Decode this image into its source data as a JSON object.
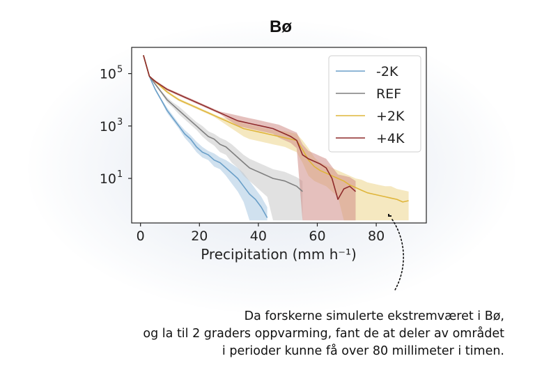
{
  "chart_data": {
    "type": "line",
    "title": "Bø",
    "xlabel": "Precipitation (mm h⁻¹)",
    "ylabel": "",
    "xlim": [
      -3,
      97
    ],
    "ylim_log10": [
      -0.7,
      6.0
    ],
    "y_scale": "log",
    "x_ticks": [
      0,
      20,
      40,
      60,
      80
    ],
    "y_ticks": [
      {
        "exp": 5,
        "label": "10",
        "sup": "5"
      },
      {
        "exp": 3,
        "label": "10",
        "sup": "3"
      },
      {
        "exp": 1,
        "label": "10",
        "sup": "1"
      }
    ],
    "legend_position": "top-right",
    "series": [
      {
        "name": "-2K",
        "color": "#6a9fc8",
        "fill": "#a9c9e1",
        "x": [
          1,
          3,
          5,
          7,
          9,
          11,
          13,
          15,
          17,
          19,
          21,
          23,
          25,
          27,
          29,
          31,
          33,
          35,
          37,
          39,
          41,
          43
        ],
        "log10y": [
          5.7,
          4.9,
          4.4,
          4.0,
          3.6,
          3.3,
          3.0,
          2.7,
          2.5,
          2.2,
          2.0,
          1.9,
          1.7,
          1.6,
          1.4,
          1.2,
          1.0,
          0.7,
          0.4,
          0.2,
          -0.1,
          -0.5
        ],
        "band_hi": [
          5.7,
          4.9,
          4.45,
          4.05,
          3.7,
          3.4,
          3.1,
          2.85,
          2.65,
          2.4,
          2.2,
          2.05,
          1.95,
          1.8,
          1.7,
          1.55,
          1.4,
          1.2,
          0.9,
          0.6,
          0.3,
          -0.1
        ],
        "band_lo": [
          5.7,
          4.9,
          4.35,
          3.95,
          3.5,
          3.2,
          2.9,
          2.55,
          2.3,
          2.0,
          1.8,
          1.7,
          1.45,
          1.35,
          1.1,
          0.8,
          0.5,
          0.1,
          -0.6,
          -0.6,
          -0.6,
          -0.6
        ]
      },
      {
        "name": "REF",
        "color": "#7f7f7f",
        "fill": "#c8c8c8",
        "x": [
          1,
          3,
          5,
          7,
          9,
          11,
          13,
          15,
          17,
          19,
          21,
          23,
          25,
          27,
          29,
          31,
          33,
          35,
          37,
          39,
          41,
          43,
          45,
          47,
          49,
          51,
          53,
          55
        ],
        "log10y": [
          5.7,
          4.9,
          4.6,
          4.3,
          4.0,
          3.8,
          3.6,
          3.4,
          3.2,
          3.0,
          2.8,
          2.6,
          2.5,
          2.3,
          2.2,
          2.0,
          1.8,
          1.6,
          1.4,
          1.3,
          1.2,
          1.1,
          1.0,
          0.95,
          0.9,
          0.8,
          0.7,
          0.5
        ],
        "band_hi": [
          5.7,
          4.9,
          4.65,
          4.35,
          4.1,
          3.9,
          3.75,
          3.55,
          3.35,
          3.15,
          3.0,
          2.8,
          2.7,
          2.55,
          2.45,
          2.3,
          2.1,
          1.9,
          1.75,
          1.65,
          1.55,
          1.45,
          1.35,
          1.3,
          1.25,
          1.15,
          1.05,
          0.9
        ],
        "band_lo": [
          5.7,
          4.9,
          4.55,
          4.25,
          3.9,
          3.7,
          3.45,
          3.25,
          3.05,
          2.85,
          2.6,
          2.4,
          2.25,
          2.0,
          1.9,
          1.6,
          1.4,
          1.1,
          0.9,
          0.7,
          0.5,
          0.3,
          -0.6,
          -0.6,
          -0.6,
          -0.6,
          -0.6,
          -0.6
        ]
      },
      {
        "name": "+2K",
        "color": "#dfb53a",
        "fill": "#ecd68c",
        "x": [
          1,
          3,
          5,
          7,
          9,
          11,
          13,
          15,
          17,
          19,
          21,
          23,
          25,
          27,
          29,
          31,
          33,
          35,
          37,
          39,
          41,
          43,
          45,
          47,
          49,
          51,
          53,
          55,
          57,
          59,
          61,
          63,
          65,
          67,
          69,
          71,
          73,
          75,
          77,
          79,
          81,
          83,
          85,
          87,
          89,
          91
        ],
        "log10y": [
          5.7,
          4.9,
          4.7,
          4.5,
          4.3,
          4.15,
          4.0,
          3.9,
          3.8,
          3.7,
          3.6,
          3.5,
          3.4,
          3.3,
          3.2,
          3.1,
          3.0,
          2.9,
          2.85,
          2.8,
          2.75,
          2.7,
          2.65,
          2.6,
          2.55,
          2.5,
          2.45,
          2.1,
          1.7,
          1.45,
          1.3,
          1.2,
          1.1,
          1.0,
          0.9,
          0.75,
          0.65,
          0.55,
          0.45,
          0.4,
          0.35,
          0.3,
          0.25,
          0.2,
          0.1,
          0.15
        ],
        "band_hi": [
          5.7,
          4.9,
          4.75,
          4.55,
          4.35,
          4.2,
          4.05,
          3.95,
          3.85,
          3.75,
          3.65,
          3.55,
          3.45,
          3.35,
          3.3,
          3.25,
          3.2,
          3.1,
          3.05,
          3.0,
          2.95,
          2.9,
          2.85,
          2.82,
          2.8,
          2.75,
          2.7,
          2.45,
          2.15,
          1.8,
          1.6,
          1.5,
          1.4,
          1.3,
          1.2,
          1.1,
          1.0,
          0.95,
          0.85,
          0.8,
          0.75,
          0.7,
          0.7,
          0.6,
          0.55,
          0.5
        ],
        "band_lo": [
          5.7,
          4.9,
          4.65,
          4.45,
          4.25,
          4.1,
          3.95,
          3.85,
          3.75,
          3.65,
          3.55,
          3.45,
          3.35,
          3.2,
          3.05,
          2.9,
          2.75,
          2.6,
          2.5,
          2.45,
          2.4,
          2.35,
          2.3,
          2.25,
          2.2,
          2.1,
          2.0,
          1.6,
          1.1,
          0.9,
          0.8,
          0.7,
          0.5,
          0.3,
          -0.6,
          -0.6,
          -0.6,
          -0.6,
          -0.6,
          -0.6,
          -0.6,
          -0.6,
          -0.6,
          -0.6,
          -0.6,
          -0.6
        ]
      },
      {
        "name": "+4K",
        "color": "#8e2a2a",
        "fill": "#cf8c86",
        "x": [
          1,
          3,
          5,
          7,
          9,
          11,
          13,
          15,
          17,
          19,
          21,
          23,
          25,
          27,
          29,
          31,
          33,
          35,
          37,
          39,
          41,
          43,
          45,
          47,
          49,
          51,
          53,
          55,
          57,
          59,
          61,
          63,
          65,
          67,
          69,
          71,
          73
        ],
        "log10y": [
          5.7,
          4.9,
          4.7,
          4.55,
          4.4,
          4.3,
          4.2,
          4.1,
          4.0,
          3.9,
          3.8,
          3.7,
          3.6,
          3.5,
          3.4,
          3.3,
          3.2,
          3.15,
          3.1,
          3.05,
          3.0,
          2.95,
          2.9,
          2.8,
          2.7,
          2.6,
          2.45,
          1.9,
          1.75,
          1.65,
          1.55,
          1.4,
          1.0,
          0.2,
          0.6,
          0.7,
          0.5
        ],
        "band_hi": [
          5.7,
          4.9,
          4.75,
          4.6,
          4.45,
          4.35,
          4.25,
          4.15,
          4.05,
          3.95,
          3.85,
          3.75,
          3.65,
          3.55,
          3.5,
          3.45,
          3.4,
          3.35,
          3.3,
          3.25,
          3.2,
          3.15,
          3.1,
          3.05,
          2.95,
          2.85,
          2.75,
          2.3,
          2.05,
          1.95,
          1.85,
          1.75,
          1.45,
          1.15,
          1.1,
          1.05,
          0.9
        ],
        "band_lo": [
          5.7,
          4.9,
          4.65,
          4.5,
          4.35,
          4.25,
          4.15,
          4.05,
          3.95,
          3.85,
          3.75,
          3.65,
          3.55,
          3.45,
          3.3,
          3.15,
          3.0,
          2.95,
          2.9,
          2.85,
          2.8,
          2.75,
          2.7,
          2.55,
          2.45,
          2.35,
          2.15,
          -0.6,
          -0.6,
          -0.6,
          -0.6,
          -0.6,
          -0.6,
          -0.6,
          -0.6,
          -0.6,
          -0.6
        ]
      }
    ]
  },
  "caption": {
    "line1": "Da forskerne simulerte ekstremværet i Bø,",
    "line2": "og la til 2 graders oppvarming, fant de at deler av området",
    "line3": "i perioder kunne få over 80 millimeter i timen."
  },
  "colors": {
    "axis": "#222222",
    "annotation": "#111111"
  }
}
